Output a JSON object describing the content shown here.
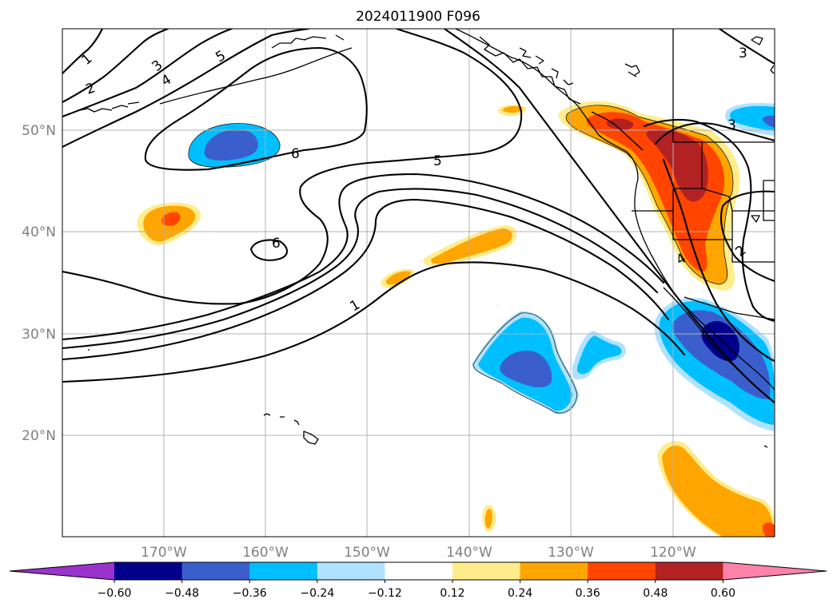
{
  "title": "2024011900 F096",
  "colors": {
    "cb": [
      "#9933cc",
      "#00008b",
      "#3a5fcd",
      "#00bfff",
      "#b0e2ff",
      "#ffffff",
      "#ffec8b",
      "#ffa500",
      "#ff4500",
      "#b22222",
      "#ff82ab"
    ],
    "neg1": "#b0e2ff",
    "neg2": "#00bfff",
    "neg3": "#3a5fcd",
    "neg4": "#00008b",
    "pos1": "#ffec8b",
    "pos2": "#ffa500",
    "pos3": "#ff4500",
    "pos4": "#b22222"
  },
  "lat_labels": [
    "50°N",
    "40°N",
    "30°N",
    "20°N"
  ],
  "lon_labels": [
    "170°W",
    "160°W",
    "150°W",
    "140°W",
    "130°W",
    "120°W"
  ],
  "colorbar": {
    "ticks": [
      "−0.60",
      "−0.48",
      "−0.36",
      "−0.24",
      "−0.12",
      "0.12",
      "0.24",
      "0.36",
      "0.48",
      "0.60"
    ],
    "extend": "both"
  },
  "contour_labels": [
    "1",
    "3",
    "4",
    "5",
    "2",
    "6",
    "5",
    "6",
    "1",
    "3",
    "3",
    "4",
    "2"
  ]
}
